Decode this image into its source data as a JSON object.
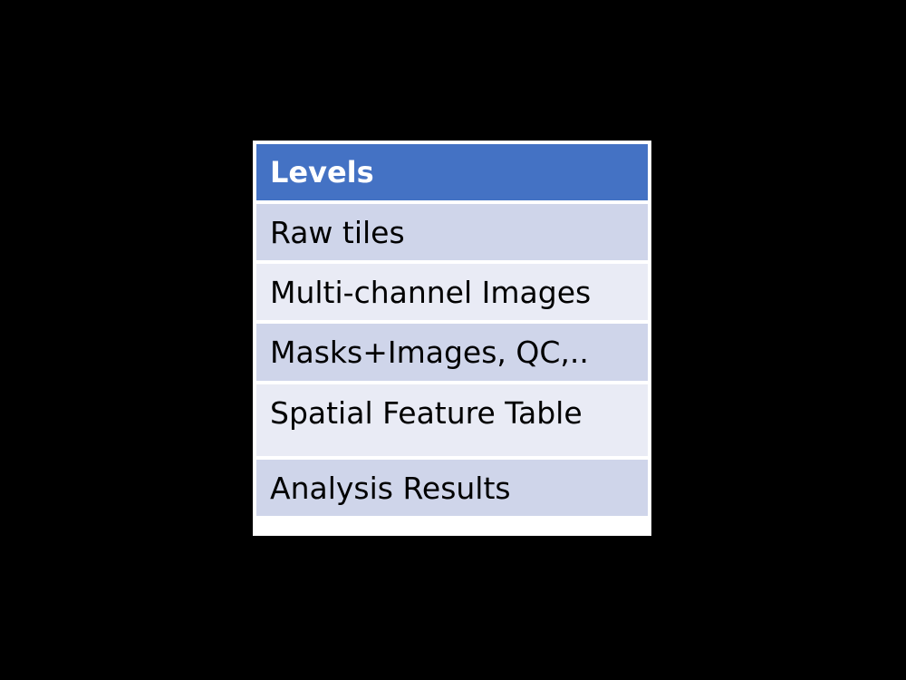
{
  "table": {
    "header": "Levels",
    "rows": [
      "Raw tiles",
      "Multi-channel Images",
      "Masks+Images, QC,..",
      "Spatial Feature Table",
      "Analysis Results"
    ]
  },
  "colors": {
    "background": "#000000",
    "header_fill": "#4472c4",
    "row_dark": "#cfd5ea",
    "row_light": "#e9ebf5",
    "border": "#ffffff"
  }
}
